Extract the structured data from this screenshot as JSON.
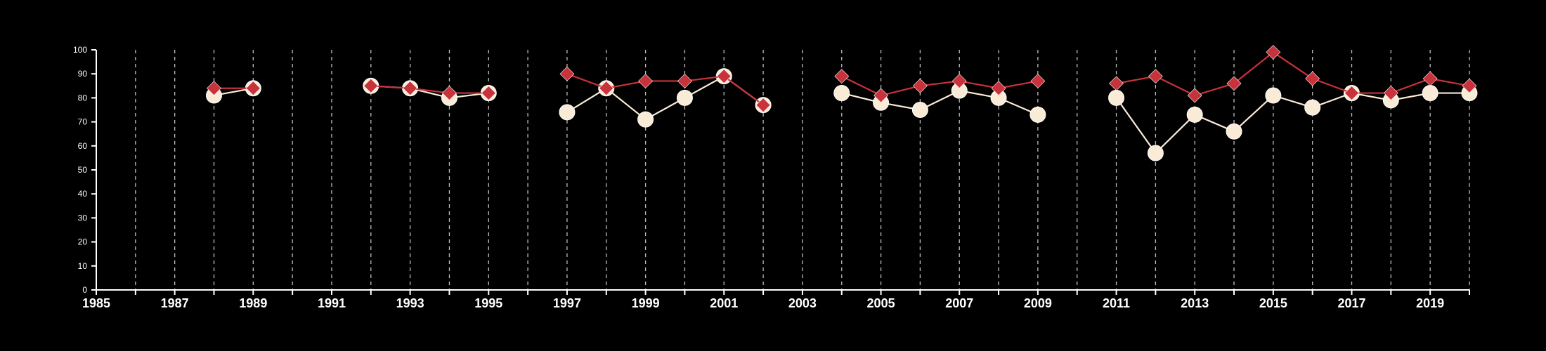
{
  "chart_data": {
    "type": "line",
    "title": "",
    "xlabel": "",
    "ylabel": "",
    "xlim": [
      1985,
      2020
    ],
    "ylim": [
      0,
      100
    ],
    "x_tick_labels": [
      "1985",
      "1987",
      "1989",
      "1991",
      "1993",
      "1995",
      "1997",
      "1999",
      "2001",
      "2003",
      "2005",
      "2007",
      "2009",
      "2011",
      "2013",
      "2015",
      "2017",
      "2019"
    ],
    "y_tick_labels": [
      "0",
      "10",
      "20",
      "30",
      "40",
      "50",
      "60",
      "70",
      "80",
      "90",
      "100"
    ],
    "grid": "vertical dashed at every year",
    "legend": "none",
    "x": [
      1988,
      1989,
      1992,
      1993,
      1994,
      1995,
      1997,
      1998,
      1999,
      2000,
      2001,
      2002,
      2004,
      2005,
      2006,
      2007,
      2008,
      2009,
      2011,
      2012,
      2013,
      2014,
      2015,
      2016,
      2017,
      2018,
      2019,
      2020
    ],
    "segments": [
      [
        1988,
        1989
      ],
      [
        1992,
        1995
      ],
      [
        1997,
        2002
      ],
      [
        2004,
        2009
      ],
      [
        2011,
        2020
      ]
    ],
    "series": [
      {
        "marker": "diamond",
        "color": "#c8323a",
        "values": [
          84,
          84,
          85,
          84,
          82,
          82,
          90,
          84,
          87,
          87,
          89,
          77,
          89,
          81,
          85,
          87,
          84,
          87,
          86,
          89,
          81,
          86,
          99,
          88,
          82,
          82,
          88,
          85
        ]
      },
      {
        "marker": "circle",
        "color": "#faebd7",
        "values": [
          81,
          84,
          85,
          84,
          80,
          82,
          74,
          84,
          71,
          80,
          89,
          77,
          82,
          78,
          75,
          83,
          80,
          73,
          80,
          57,
          73,
          66,
          81,
          76,
          82,
          79,
          82,
          82
        ]
      }
    ]
  }
}
